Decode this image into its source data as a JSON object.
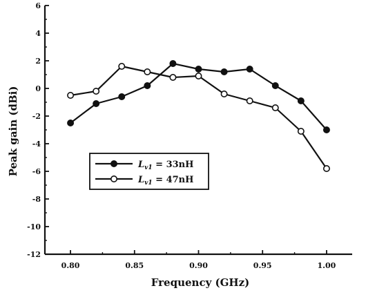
{
  "chart_data": {
    "type": "line",
    "title": "",
    "xlabel": "Frequency (GHz)",
    "ylabel": "Peak gain (dBi)",
    "xlim": [
      0.78,
      1.02
    ],
    "ylim": [
      -12,
      6
    ],
    "x_ticks": [
      "0.80",
      "0.85",
      "0.90",
      "0.95",
      "1.00"
    ],
    "x_tick_values": [
      0.8,
      0.85,
      0.9,
      0.95,
      1.0
    ],
    "y_ticks": [
      "6",
      "4",
      "2",
      "0",
      "-2",
      "-4",
      "-6",
      "-8",
      "-10",
      "-12"
    ],
    "y_tick_values": [
      6,
      4,
      2,
      0,
      -2,
      -4,
      -6,
      -8,
      -10,
      -12
    ],
    "grid": false,
    "legend_position": "center-left",
    "x": [
      0.8,
      0.82,
      0.84,
      0.86,
      0.88,
      0.9,
      0.92,
      0.94,
      0.96,
      0.98,
      1.0
    ],
    "series": [
      {
        "name_main": "L",
        "name_sub": "v1",
        "name_rest": " = 33nH",
        "marker": "filled-circle",
        "color": "#111111",
        "values": [
          -2.5,
          -1.1,
          -0.6,
          0.2,
          1.8,
          1.4,
          1.2,
          1.4,
          0.2,
          -0.9,
          -3.0
        ]
      },
      {
        "name_main": "L",
        "name_sub": "v1",
        "name_rest": " = 47nH",
        "marker": "open-circle",
        "color": "#111111",
        "values": [
          -0.5,
          -0.2,
          1.6,
          1.2,
          0.8,
          0.9,
          -0.4,
          -0.9,
          -1.4,
          -3.1,
          -5.8
        ]
      }
    ]
  }
}
